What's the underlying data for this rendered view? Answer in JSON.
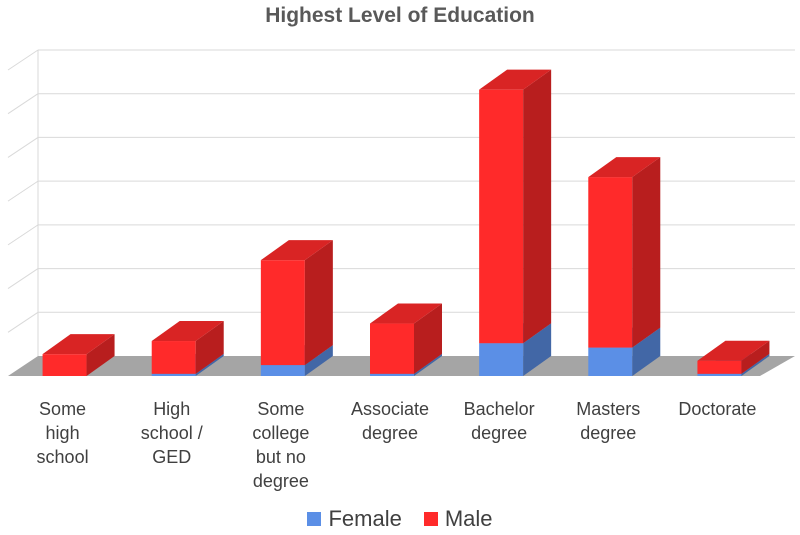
{
  "chart_data": {
    "type": "bar",
    "stacked": true,
    "three_d": true,
    "title": "Highest Level of Education",
    "categories": [
      [
        "Some",
        "high",
        "school"
      ],
      [
        "High",
        "school /",
        "GED"
      ],
      [
        "Some",
        "college",
        "but no",
        "degree"
      ],
      [
        "Associate",
        "degree"
      ],
      [
        "Bachelor",
        "degree"
      ],
      [
        "Masters",
        "degree"
      ],
      [
        "Doctorate"
      ]
    ],
    "series": [
      {
        "name": "Female",
        "color": "#5B8FE6",
        "values": [
          0,
          0.5,
          2.5,
          0.5,
          7.5,
          6.5,
          0.5
        ]
      },
      {
        "name": "Male",
        "color": "#FF2A2A",
        "values": [
          5,
          7.5,
          24,
          11.5,
          58,
          39,
          3
        ]
      }
    ],
    "ylim": [
      0,
      70
    ],
    "grid": true,
    "legend_position": "bottom",
    "axis_tick_labels_visible": false
  }
}
